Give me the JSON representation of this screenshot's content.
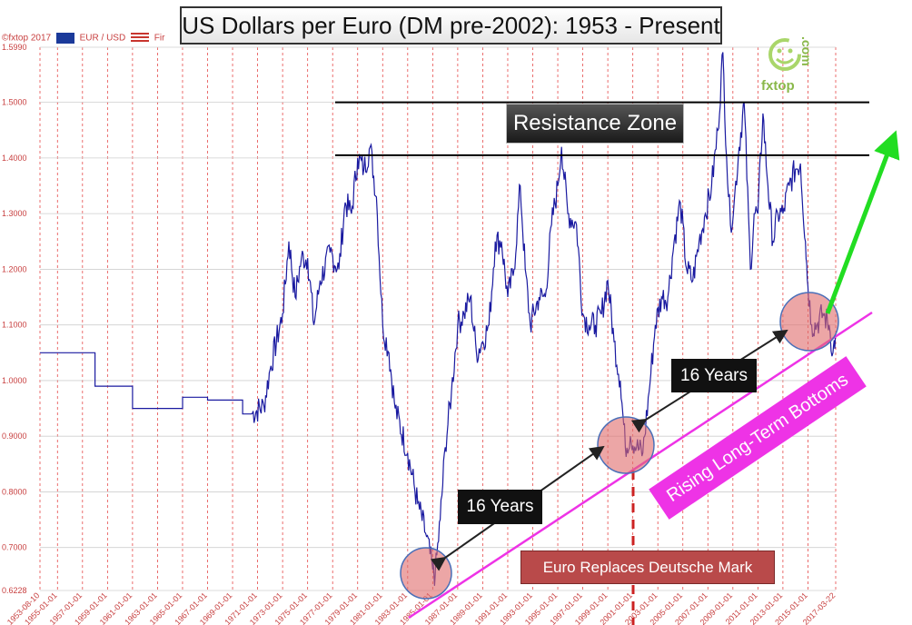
{
  "title": "US Dollars per Euro (DM pre-2002): 1953 - Present",
  "header": {
    "copyright": "©fxtop 2017",
    "pair": "EUR / USD",
    "suffix": "Fir"
  },
  "logo": {
    "text": "fxtop",
    "side": ".com"
  },
  "annotations": {
    "resistance_label": "Resistance Zone",
    "years_label_1": "16 Years",
    "years_label_2": "16 Years",
    "euro_label": "Euro Replaces Deutsche Mark",
    "trend_label": "Rising Long-Term Bottoms"
  },
  "colors": {
    "series": "#1a1aa0",
    "grid": "#e64a4a",
    "resistance_lines": "#000000",
    "trend_line": "#ee33e6",
    "arrow_up": "#22dd22",
    "circle_fill": "#e06a6a",
    "circle_stroke": "#4a6fb8"
  },
  "chart_data": {
    "type": "line",
    "title": "US Dollars per Euro (DM pre-2002): 1953 - Present",
    "xlabel": "",
    "ylabel": "",
    "xlim": [
      "1953-08-10",
      "2017-03-22"
    ],
    "ylim": [
      0.6228,
      1.599
    ],
    "yticks": [
      "1.5990",
      "1.5000",
      "1.4000",
      "1.3000",
      "1.2000",
      "1.1000",
      "1.0000",
      "0.9000",
      "0.8000",
      "0.7000",
      "0.6228"
    ],
    "ytick_values": [
      1.599,
      1.5,
      1.4,
      1.3,
      1.2,
      1.1,
      1.0,
      0.9,
      0.8,
      0.7,
      0.6228
    ],
    "xticks": [
      "1953-08-10",
      "1955-01-01",
      "1957-01-01",
      "1959-01-01",
      "1961-01-01",
      "1963-01-01",
      "1965-01-01",
      "1967-01-01",
      "1969-01-01",
      "1971-01-01",
      "1973-01-01",
      "1975-01-01",
      "1977-01-01",
      "1979-01-01",
      "1981-01-01",
      "1983-01-01",
      "1985-01-01",
      "1987-01-01",
      "1989-01-01",
      "1991-01-01",
      "1993-01-01",
      "1995-01-01",
      "1997-01-01",
      "1999-01-01",
      "2001-01-01",
      "2003-01-01",
      "2005-01-01",
      "2007-01-01",
      "2009-01-01",
      "2011-01-01",
      "2013-01-01",
      "2015-01-01",
      "2017-03-22"
    ],
    "grid": true,
    "series": [
      {
        "x": [
          1953.6,
          1955.0,
          1956.5,
          1958.0,
          1959.5,
          1961.0,
          1961.2,
          1963.0,
          1965.0,
          1967.0,
          1969.0,
          1969.8,
          1970.5,
          1971.5,
          1972.0,
          1973.0,
          1973.5,
          1974.0,
          1974.5,
          1975.0,
          1975.5,
          1976.0,
          1976.8,
          1977.5,
          1978.0,
          1978.5,
          1979.0,
          1979.5,
          1980.0,
          1980.5,
          1981.0,
          1981.5,
          1982.0,
          1983.0,
          1983.8,
          1984.5,
          1985.0,
          1985.2,
          1985.6,
          1986.0,
          1986.5,
          1987.0,
          1987.5,
          1988.0,
          1988.5,
          1989.0,
          1989.5,
          1990.0,
          1990.5,
          1991.0,
          1991.5,
          1992.0,
          1992.4,
          1992.8,
          1993.5,
          1994.0,
          1994.5,
          1995.0,
          1995.3,
          1995.8,
          1996.5,
          1997.0,
          1997.5,
          1998.0,
          1998.5,
          1999.0,
          1999.5,
          2000.0,
          2000.4,
          2000.8,
          2001.3,
          2001.8,
          2002.3,
          2002.8,
          2003.3,
          2003.8,
          2004.3,
          2004.8,
          2005.3,
          2005.8,
          2006.3,
          2006.8,
          2007.3,
          2007.8,
          2008.2,
          2008.5,
          2008.8,
          2009.1,
          2009.5,
          2009.9,
          2010.4,
          2010.7,
          2011.0,
          2011.4,
          2011.8,
          2012.2,
          2012.6,
          2013.0,
          2013.5,
          2014.0,
          2014.4,
          2014.8,
          2015.0,
          2015.3,
          2015.7,
          2016.2,
          2016.7,
          2017.0,
          2017.2
        ],
        "values": [
          1.05,
          1.05,
          1.05,
          0.99,
          0.99,
          0.95,
          0.95,
          0.95,
          0.97,
          0.965,
          0.965,
          0.94,
          0.94,
          0.955,
          1.02,
          1.12,
          1.25,
          1.15,
          1.22,
          1.22,
          1.1,
          1.18,
          1.23,
          1.2,
          1.32,
          1.3,
          1.4,
          1.38,
          1.42,
          1.33,
          1.1,
          1.05,
          0.95,
          0.87,
          0.78,
          0.72,
          0.66,
          0.65,
          0.75,
          0.88,
          0.98,
          1.1,
          1.12,
          1.15,
          1.05,
          1.07,
          1.1,
          1.25,
          1.25,
          1.15,
          1.2,
          1.35,
          1.2,
          1.1,
          1.15,
          1.15,
          1.28,
          1.35,
          1.42,
          1.3,
          1.28,
          1.12,
          1.1,
          1.1,
          1.12,
          1.18,
          1.07,
          1.0,
          0.88,
          0.9,
          0.88,
          0.87,
          0.98,
          1.1,
          1.15,
          1.15,
          1.25,
          1.32,
          1.2,
          1.18,
          1.25,
          1.3,
          1.35,
          1.45,
          1.59,
          1.4,
          1.28,
          1.32,
          1.42,
          1.5,
          1.2,
          1.3,
          1.3,
          1.48,
          1.35,
          1.25,
          1.3,
          1.3,
          1.35,
          1.38,
          1.39,
          1.25,
          1.17,
          1.1,
          1.1,
          1.12,
          1.1,
          1.05,
          1.08
        ]
      }
    ],
    "horizontal_lines": [
      1.5,
      1.405
    ]
  }
}
